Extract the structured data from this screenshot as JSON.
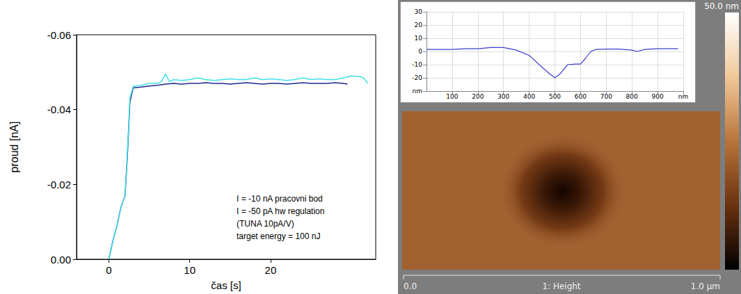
{
  "chart_data": [
    {
      "type": "line",
      "xlabel": "čas [s]",
      "ylabel": "proud [nA]",
      "annotations": [
        "I = -10 nA pracovni bod",
        "I = -50 pA hw regulation",
        "(TUNA 10pA/V)",
        "target energy = 100 nJ"
      ],
      "xlim": [
        -4,
        33
      ],
      "xticks": [
        0,
        10,
        20
      ],
      "ylim": [
        0,
        -0.06
      ],
      "yticks": [
        {
          "value": 0,
          "label": "0.00"
        },
        -0.02,
        -0.04,
        -0.06
      ],
      "grid": false,
      "series": [
        {
          "color": "#1c2a8c",
          "x": [
            0,
            0.5,
            1,
            1.5,
            2,
            2.3,
            2.6,
            3,
            4,
            5,
            6,
            7,
            8,
            9,
            10,
            11,
            12,
            13,
            14,
            15,
            16,
            17,
            18,
            19,
            20,
            21,
            22,
            23,
            24,
            25,
            26,
            27,
            28,
            29,
            29.5
          ],
          "values": [
            0,
            -0.005,
            -0.009,
            -0.014,
            -0.017,
            -0.028,
            -0.042,
            -0.0458,
            -0.046,
            -0.0463,
            -0.0465,
            -0.0468,
            -0.047,
            -0.0468,
            -0.047,
            -0.047,
            -0.0472,
            -0.047,
            -0.047,
            -0.0468,
            -0.047,
            -0.0472,
            -0.047,
            -0.0468,
            -0.047,
            -0.047,
            -0.0468,
            -0.047,
            -0.0472,
            -0.047,
            -0.047,
            -0.047,
            -0.0472,
            -0.047,
            -0.0468
          ]
        },
        {
          "color": "#3fe0e6",
          "x": [
            0,
            0.5,
            1,
            1.5,
            2,
            2.3,
            2.6,
            3,
            4,
            5,
            6,
            6.5,
            7,
            7.5,
            8,
            9,
            10,
            11,
            12,
            13,
            14,
            15,
            16,
            17,
            18,
            19,
            20,
            21,
            22,
            23,
            24,
            25,
            26,
            27,
            28,
            29,
            30,
            31,
            31.5,
            32
          ],
          "values": [
            0,
            -0.005,
            -0.009,
            -0.014,
            -0.017,
            -0.029,
            -0.043,
            -0.0462,
            -0.0465,
            -0.047,
            -0.047,
            -0.0475,
            -0.0495,
            -0.0475,
            -0.048,
            -0.0478,
            -0.048,
            -0.0485,
            -0.048,
            -0.0478,
            -0.048,
            -0.0482,
            -0.048,
            -0.048,
            -0.0485,
            -0.048,
            -0.0482,
            -0.048,
            -0.0478,
            -0.048,
            -0.0485,
            -0.048,
            -0.0482,
            -0.048,
            -0.048,
            -0.0485,
            -0.049,
            -0.0488,
            -0.0485,
            -0.047
          ]
        }
      ]
    },
    {
      "type": "line",
      "xlim": [
        0,
        1000
      ],
      "xticks": [
        100,
        200,
        300,
        400,
        500,
        600,
        700,
        800,
        900,
        {
          "value": 1000,
          "label": "nm"
        }
      ],
      "ylim": [
        -30,
        30
      ],
      "yticks": [
        {
          "value": -30,
          "label": "nm"
        },
        -20,
        -10,
        0,
        10,
        20,
        30
      ],
      "grid": true,
      "series": [
        {
          "color": "#3c3ccf",
          "x": [
            0,
            50,
            100,
            150,
            200,
            250,
            300,
            350,
            400,
            450,
            480,
            500,
            520,
            550,
            580,
            600,
            620,
            640,
            660,
            700,
            750,
            800,
            820,
            850,
            900,
            950,
            980
          ],
          "values": [
            1.5,
            1.5,
            1.5,
            2,
            2,
            3,
            3,
            1,
            -3,
            -12,
            -17,
            -20,
            -17,
            -10,
            -9.5,
            -9.5,
            -5,
            0,
            1.5,
            1.8,
            1.8,
            1,
            0,
            1.5,
            2,
            2,
            2
          ]
        }
      ]
    }
  ],
  "afm_image": {
    "colorbar_label": "50.0 nm",
    "scale_start": "0.0",
    "channel": "1: Height",
    "scale_end": "1.0 µm"
  }
}
